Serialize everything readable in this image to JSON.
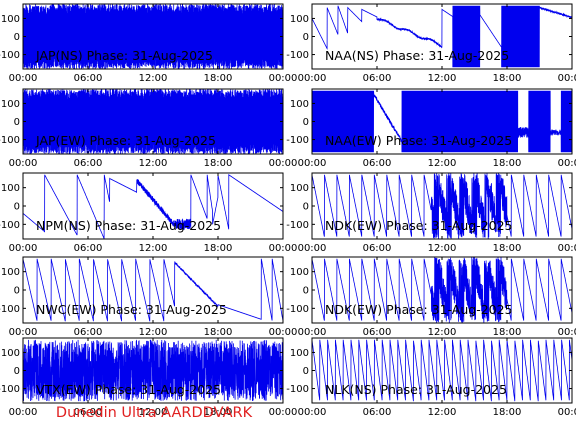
{
  "footer": "Dunedin Ultra AARDDVARK",
  "colors": {
    "trace": "#0000ee",
    "axis": "#000000",
    "footer": "#e02020",
    "background": "#ffffff"
  },
  "chart_data": [
    {
      "type": "line",
      "title": "JAP(NS) Phase: 31-Aug-2025",
      "xlim": [
        0,
        24
      ],
      "ylim": [
        -180,
        180
      ],
      "yticks": [
        -100,
        0,
        100
      ],
      "yticklabels": [
        "-100",
        "0",
        "100"
      ],
      "xticks": [
        0,
        6,
        12,
        18,
        24
      ],
      "xticklabels": [
        "00:00",
        "06:00",
        "12:00",
        "18:00",
        "00:00"
      ],
      "pattern": "dense",
      "params": {
        "p": 0.011
      }
    },
    {
      "type": "line",
      "title": "NAA(NS) Phase: 31-Aug-2025",
      "xlim": [
        0,
        24
      ],
      "ylim": [
        -180,
        180
      ],
      "yticks": [
        -100,
        0,
        100
      ],
      "yticklabels": [
        "-100",
        "0",
        "100"
      ],
      "xticks": [
        0,
        6,
        12,
        18,
        24
      ],
      "xticklabels": [
        "00:00",
        "06:00",
        "12:00",
        "18:00",
        "00:00"
      ],
      "pattern": "naa_ns",
      "params": {}
    },
    {
      "type": "line",
      "title": "JAP(EW) Phase: 31-Aug-2025",
      "xlim": [
        0,
        24
      ],
      "ylim": [
        -180,
        180
      ],
      "yticks": [
        -100,
        0,
        100
      ],
      "yticklabels": [
        "-100",
        "0",
        "100"
      ],
      "xticks": [
        0,
        6,
        12,
        18,
        24
      ],
      "xticklabels": [
        "00:00",
        "06:00",
        "12:00",
        "18:00",
        "00:00"
      ],
      "pattern": "dense",
      "params": {
        "p": 0.013
      }
    },
    {
      "type": "line",
      "title": "NAA(EW) Phase: 31-Aug-2025",
      "xlim": [
        0,
        24
      ],
      "ylim": [
        -180,
        180
      ],
      "yticks": [
        -100,
        0,
        100
      ],
      "yticklabels": [
        "-100",
        "0",
        "100"
      ],
      "xticks": [
        0,
        6,
        12,
        18,
        24
      ],
      "xticklabels": [
        "00:00",
        "06:00",
        "12:00",
        "18:00",
        "00:00"
      ],
      "pattern": "naa_ew",
      "params": {}
    },
    {
      "type": "line",
      "title": "NPM(NS) Phase: 31-Aug-2025",
      "xlim": [
        0,
        24
      ],
      "ylim": [
        -180,
        180
      ],
      "yticks": [
        -100,
        0,
        100
      ],
      "yticklabels": [
        "-100",
        "0",
        "100"
      ],
      "xticks": [
        0,
        6,
        12,
        18,
        24
      ],
      "xticklabels": [
        "00:00",
        "06:00",
        "12:00",
        "18:00",
        "00:00"
      ],
      "pattern": "npm",
      "params": {}
    },
    {
      "type": "line",
      "title": "NDK(EW) Phase: 31-Aug-2025",
      "xlim": [
        0,
        24
      ],
      "ylim": [
        -180,
        180
      ],
      "yticks": [
        -100,
        0,
        100
      ],
      "yticklabels": [
        "-100",
        "0",
        "100"
      ],
      "xticks": [
        0,
        6,
        12,
        18,
        24
      ],
      "xticklabels": [
        "00:00",
        "06:00",
        "12:00",
        "18:00",
        "00:00"
      ],
      "pattern": "saw",
      "params": {
        "period": 1.15,
        "noise": [
          11,
          18
        ]
      }
    },
    {
      "type": "line",
      "title": "NWC(EW) Phase: 31-Aug-2025",
      "xlim": [
        0,
        24
      ],
      "ylim": [
        -180,
        180
      ],
      "yticks": [
        -100,
        0,
        100
      ],
      "yticklabels": [
        "-100",
        "0",
        "100"
      ],
      "xticks": [
        0,
        6,
        12,
        18,
        24
      ],
      "xticklabels": [
        "00:00",
        "06:00",
        "12:00",
        "18:00",
        "00:00"
      ],
      "pattern": "nwc",
      "params": {}
    },
    {
      "type": "line",
      "title": "NDK(EW) Phase: 31-Aug-2025",
      "xlim": [
        0,
        24
      ],
      "ylim": [
        -180,
        180
      ],
      "yticks": [
        -100,
        0,
        100
      ],
      "yticklabels": [
        "-100",
        "0",
        "100"
      ],
      "xticks": [
        0,
        6,
        12,
        18,
        24
      ],
      "xticklabels": [
        "00:00",
        "06:00",
        "12:00",
        "18:00",
        "00:00"
      ],
      "pattern": "saw",
      "params": {
        "period": 1.15,
        "noise": [
          11,
          18
        ]
      }
    },
    {
      "type": "line",
      "title": "VTX(EW) Phase: 31-Aug-2025",
      "xlim": [
        0,
        24
      ],
      "ylim": [
        -180,
        180
      ],
      "yticks": [
        -100,
        0,
        100
      ],
      "yticklabels": [
        "-100",
        "0",
        "100"
      ],
      "xticks": [
        0,
        6,
        12,
        18,
        24
      ],
      "xticklabels": [
        "00:00",
        "06:00",
        "12:00",
        "18:00",
        "00:00"
      ],
      "pattern": "noise",
      "params": {}
    },
    {
      "type": "line",
      "title": "NLK(NS) Phase: 31-Aug-2025",
      "xlim": [
        0,
        24
      ],
      "ylim": [
        -180,
        180
      ],
      "yticks": [
        -100,
        0,
        100
      ],
      "yticklabels": [
        "-100",
        "0",
        "100"
      ],
      "xticks": [
        0,
        6,
        12,
        18,
        24
      ],
      "xticklabels": [
        "00:00",
        "06:00",
        "12:00",
        "18:00",
        "00:00"
      ],
      "pattern": "saw",
      "params": {
        "period": 0.72,
        "noise": null
      }
    }
  ]
}
